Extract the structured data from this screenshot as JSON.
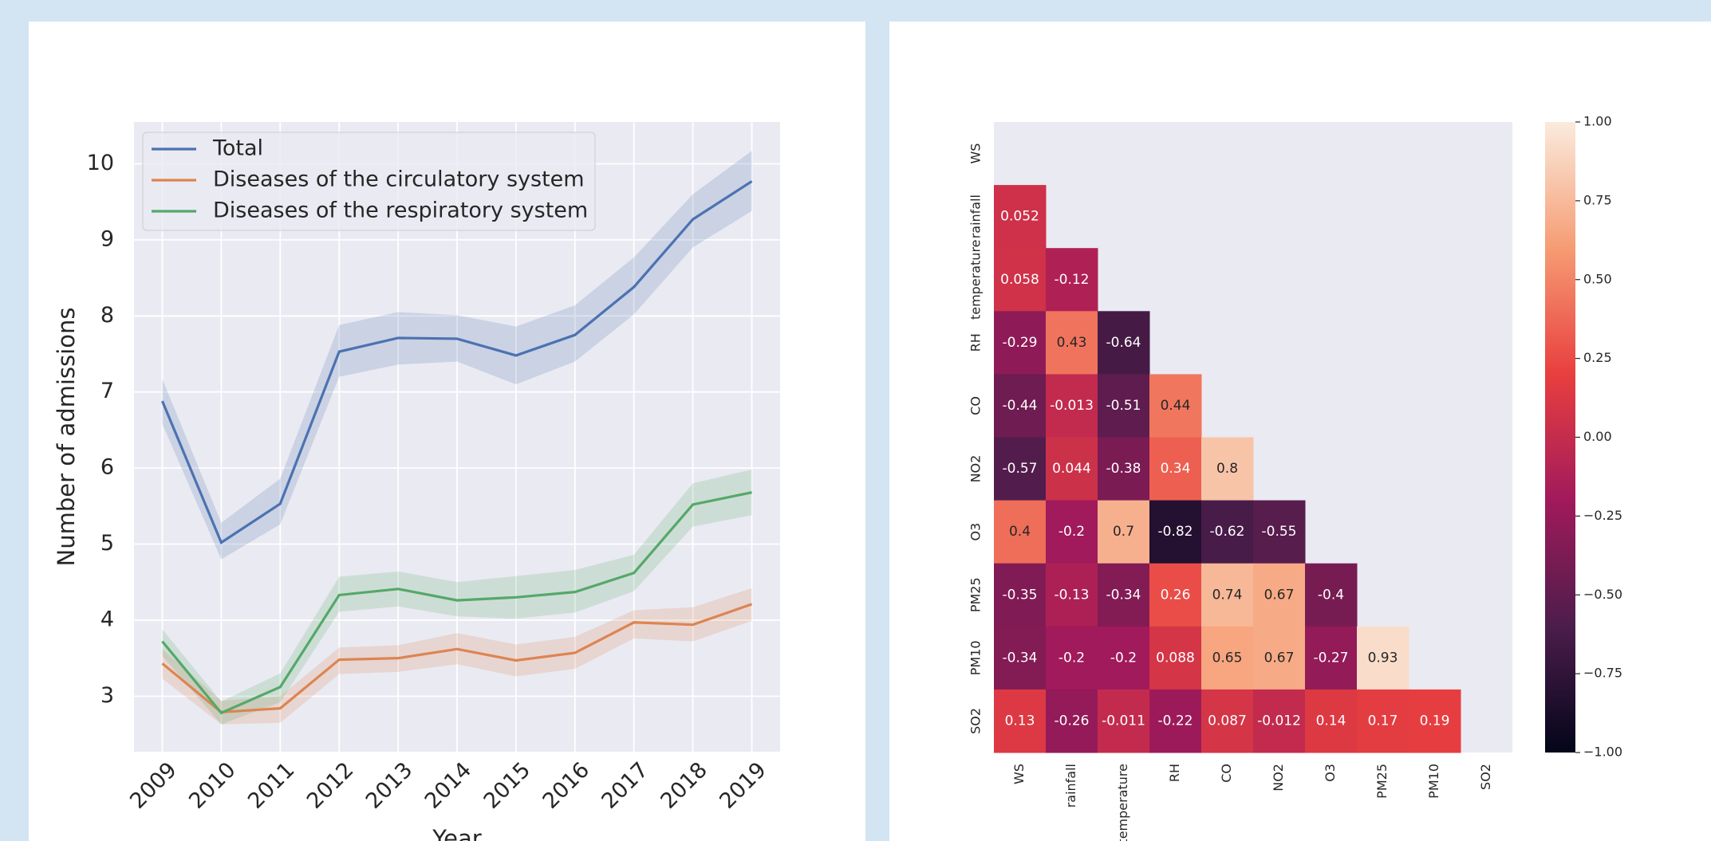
{
  "chart_data": [
    {
      "type": "line",
      "xlabel": "Year",
      "ylabel": "Number of admissions",
      "x": [
        2009,
        2010,
        2011,
        2012,
        2013,
        2014,
        2015,
        2016,
        2017,
        2018,
        2019
      ],
      "xlim": [
        2008.52,
        2019.48
      ],
      "ylim": [
        2.27,
        10.55
      ],
      "xticks": [
        2009,
        2010,
        2011,
        2012,
        2013,
        2014,
        2015,
        2016,
        2017,
        2018,
        2019
      ],
      "yticks": [
        3,
        4,
        5,
        6,
        7,
        8,
        9,
        10
      ],
      "grid": true,
      "legend": "upper left",
      "series": [
        {
          "name": "Total",
          "color": "#4c72b0",
          "values": [
            6.88,
            5.02,
            5.53,
            7.53,
            7.71,
            7.7,
            7.48,
            7.75,
            8.38,
            9.27,
            9.77
          ],
          "lower": [
            6.58,
            4.8,
            5.26,
            7.2,
            7.36,
            7.4,
            7.1,
            7.4,
            8.02,
            8.9,
            9.38
          ],
          "upper": [
            7.17,
            5.28,
            5.86,
            7.88,
            8.05,
            8.01,
            7.86,
            8.14,
            8.77,
            9.6,
            10.17
          ]
        },
        {
          "name": "Diseases of the circulatory system",
          "color": "#dd8452",
          "values": [
            3.43,
            2.79,
            2.84,
            3.48,
            3.5,
            3.62,
            3.47,
            3.57,
            3.97,
            3.94,
            4.21
          ],
          "lower": [
            3.23,
            2.63,
            2.65,
            3.29,
            3.32,
            3.42,
            3.26,
            3.36,
            3.76,
            3.72,
            3.99
          ],
          "upper": [
            3.62,
            2.94,
            3.0,
            3.64,
            3.67,
            3.83,
            3.68,
            3.78,
            4.13,
            4.17,
            4.42
          ]
        },
        {
          "name": "Diseases of the respiratory system",
          "color": "#55a868",
          "values": [
            3.72,
            2.78,
            3.12,
            4.33,
            4.41,
            4.26,
            4.3,
            4.37,
            4.62,
            5.52,
            5.68
          ],
          "lower": [
            3.53,
            2.63,
            2.92,
            4.11,
            4.18,
            4.05,
            4.02,
            4.1,
            4.38,
            5.23,
            5.38
          ],
          "upper": [
            3.88,
            2.93,
            3.3,
            4.57,
            4.64,
            4.5,
            4.58,
            4.66,
            4.86,
            5.8,
            5.98
          ]
        }
      ]
    },
    {
      "type": "heatmap",
      "categories": [
        "WS",
        "rainfall",
        "temperature",
        "RH",
        "CO",
        "NO2",
        "O3",
        "PM25",
        "PM10",
        "SO2"
      ],
      "matrix": [
        [
          null,
          null,
          null,
          null,
          null,
          null,
          null,
          null,
          null,
          null
        ],
        [
          0.052,
          null,
          null,
          null,
          null,
          null,
          null,
          null,
          null,
          null
        ],
        [
          0.058,
          -0.12,
          null,
          null,
          null,
          null,
          null,
          null,
          null,
          null
        ],
        [
          -0.29,
          0.43,
          -0.64,
          null,
          null,
          null,
          null,
          null,
          null,
          null
        ],
        [
          -0.44,
          -0.013,
          -0.51,
          0.44,
          null,
          null,
          null,
          null,
          null,
          null
        ],
        [
          -0.57,
          0.044,
          -0.38,
          0.34,
          0.8,
          null,
          null,
          null,
          null,
          null
        ],
        [
          0.4,
          -0.2,
          0.7,
          -0.82,
          -0.62,
          -0.55,
          null,
          null,
          null,
          null
        ],
        [
          -0.35,
          -0.13,
          -0.34,
          0.26,
          0.74,
          0.67,
          -0.4,
          null,
          null,
          null
        ],
        [
          -0.34,
          -0.2,
          -0.2,
          0.088,
          0.65,
          0.67,
          -0.27,
          0.93,
          null,
          null
        ],
        [
          0.13,
          -0.26,
          -0.011,
          -0.22,
          0.087,
          -0.012,
          0.14,
          0.17,
          0.19,
          null
        ]
      ],
      "zlim": [
        -1,
        1
      ],
      "zticks": [
        {
          "value": 1,
          "label": "1.00"
        },
        {
          "value": 0.75,
          "label": "0.75"
        },
        {
          "value": 0.5,
          "label": "0.50"
        },
        {
          "value": 0.25,
          "label": "0.25"
        },
        {
          "value": 0,
          "label": "0.00"
        },
        {
          "value": -0.25,
          "label": "−0.25"
        },
        {
          "value": -0.5,
          "label": "−0.50"
        },
        {
          "value": -0.75,
          "label": "−0.75"
        },
        {
          "value": -1,
          "label": "−1.00"
        }
      ],
      "colorscale": [
        "#03051a",
        "#4c1d4b",
        "#a11a5b",
        "#e83f3f",
        "#f69c73",
        "#faebdd"
      ]
    }
  ]
}
